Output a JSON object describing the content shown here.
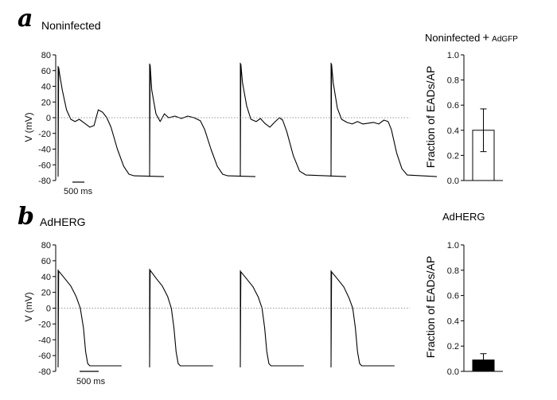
{
  "figure": {
    "panel_a": {
      "label": "a",
      "title": "Noninfected"
    },
    "panel_b": {
      "label": "b",
      "title": "AdHERG"
    }
  },
  "chart_data": [
    {
      "id": "a_traces",
      "type": "line",
      "panel": "a",
      "ylabel": "V (mV)",
      "ylim": [
        -80,
        80
      ],
      "yticks": [
        -80,
        -60,
        -40,
        -20,
        0,
        20,
        40,
        60,
        80
      ],
      "scale_bar": "500 ms",
      "zero_line": true,
      "series": [
        {
          "points": [
            [
              0,
              -75
            ],
            [
              5,
              64
            ],
            [
              15,
              55
            ],
            [
              40,
              35
            ],
            [
              80,
              10
            ],
            [
              120,
              -2
            ],
            [
              160,
              -5
            ],
            [
              200,
              -2
            ],
            [
              250,
              -7
            ],
            [
              300,
              -12
            ],
            [
              340,
              -10
            ],
            [
              380,
              10
            ],
            [
              420,
              7
            ],
            [
              460,
              0
            ],
            [
              500,
              -12
            ],
            [
              560,
              -40
            ],
            [
              620,
              -62
            ],
            [
              670,
              -72
            ],
            [
              720,
              -74
            ],
            [
              1000,
              -75
            ]
          ]
        },
        {
          "points": [
            [
              0,
              -75
            ],
            [
              5,
              67
            ],
            [
              20,
              35
            ],
            [
              60,
              5
            ],
            [
              100,
              -5
            ],
            [
              140,
              5
            ],
            [
              180,
              0
            ],
            [
              240,
              2
            ],
            [
              300,
              -1
            ],
            [
              360,
              2
            ],
            [
              420,
              0
            ],
            [
              480,
              -4
            ],
            [
              520,
              -15
            ],
            [
              580,
              -40
            ],
            [
              640,
              -62
            ],
            [
              690,
              -72
            ],
            [
              740,
              -74
            ],
            [
              1000,
              -75
            ]
          ]
        },
        {
          "points": [
            [
              0,
              -75
            ],
            [
              5,
              68
            ],
            [
              20,
              45
            ],
            [
              60,
              15
            ],
            [
              100,
              -2
            ],
            [
              150,
              -5
            ],
            [
              190,
              -1
            ],
            [
              230,
              -7
            ],
            [
              280,
              -12
            ],
            [
              330,
              -5
            ],
            [
              370,
              0
            ],
            [
              400,
              -3
            ],
            [
              440,
              -18
            ],
            [
              500,
              -48
            ],
            [
              560,
              -68
            ],
            [
              620,
              -73
            ],
            [
              1000,
              -75
            ]
          ]
        },
        {
          "points": [
            [
              0,
              -75
            ],
            [
              5,
              68
            ],
            [
              20,
              45
            ],
            [
              60,
              12
            ],
            [
              100,
              -2
            ],
            [
              150,
              -6
            ],
            [
              200,
              -8
            ],
            [
              250,
              -5
            ],
            [
              300,
              -8
            ],
            [
              350,
              -7
            ],
            [
              400,
              -6
            ],
            [
              450,
              -8
            ],
            [
              500,
              -3
            ],
            [
              540,
              -5
            ],
            [
              570,
              -15
            ],
            [
              620,
              -45
            ],
            [
              670,
              -65
            ],
            [
              720,
              -73
            ],
            [
              1000,
              -75
            ]
          ]
        }
      ]
    },
    {
      "id": "a_bar",
      "type": "bar",
      "panel": "a",
      "title_main": "Noninfected",
      "title_plus": "+",
      "title_tail": "AdGFP",
      "ylabel": "Fraction of EADs/AP",
      "ylim": [
        0,
        1.0
      ],
      "yticks": [
        0.0,
        0.2,
        0.4,
        0.6,
        0.8,
        1.0
      ],
      "values": [
        0.4
      ],
      "error": [
        0.17
      ],
      "fill": "#ffffff"
    },
    {
      "id": "b_traces",
      "type": "line",
      "panel": "b",
      "ylabel": "V (mV)",
      "ylim": [
        -80,
        80
      ],
      "yticks": [
        -80,
        -60,
        -40,
        -20,
        0,
        20,
        40,
        60,
        80
      ],
      "scale_bar": "500 ms",
      "zero_line": true,
      "series": [
        {
          "points": [
            [
              0,
              -74
            ],
            [
              5,
              47
            ],
            [
              60,
              38
            ],
            [
              120,
              28
            ],
            [
              170,
              15
            ],
            [
              210,
              0
            ],
            [
              240,
              -25
            ],
            [
              260,
              -55
            ],
            [
              280,
              -70
            ],
            [
              300,
              -73
            ],
            [
              600,
              -73
            ]
          ]
        },
        {
          "points": [
            [
              0,
              -74
            ],
            [
              5,
              48
            ],
            [
              60,
              38
            ],
            [
              120,
              28
            ],
            [
              170,
              15
            ],
            [
              205,
              0
            ],
            [
              230,
              -25
            ],
            [
              250,
              -55
            ],
            [
              270,
              -70
            ],
            [
              290,
              -73
            ],
            [
              600,
              -73
            ]
          ]
        },
        {
          "points": [
            [
              0,
              -74
            ],
            [
              5,
              46
            ],
            [
              60,
              37
            ],
            [
              120,
              27
            ],
            [
              170,
              14
            ],
            [
              205,
              0
            ],
            [
              230,
              -25
            ],
            [
              250,
              -55
            ],
            [
              270,
              -70
            ],
            [
              290,
              -73
            ],
            [
              600,
              -73
            ]
          ]
        },
        {
          "points": [
            [
              0,
              -74
            ],
            [
              5,
              46
            ],
            [
              60,
              37
            ],
            [
              120,
              27
            ],
            [
              170,
              13
            ],
            [
              205,
              0
            ],
            [
              230,
              -25
            ],
            [
              250,
              -55
            ],
            [
              270,
              -70
            ],
            [
              290,
              -73
            ],
            [
              600,
              -73
            ]
          ]
        }
      ]
    },
    {
      "id": "b_bar",
      "type": "bar",
      "panel": "b",
      "title": "AdHERG",
      "ylabel": "Fraction of EADs/AP",
      "ylim": [
        0,
        1.0
      ],
      "yticks": [
        0.0,
        0.2,
        0.4,
        0.6,
        0.8,
        1.0
      ],
      "values": [
        0.09
      ],
      "error": [
        0.05
      ],
      "fill": "#000000"
    }
  ]
}
